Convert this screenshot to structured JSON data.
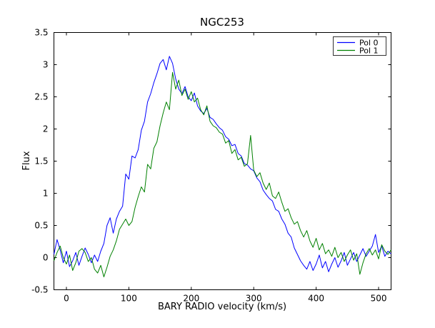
{
  "chart_data": {
    "type": "line",
    "title": "NGC253",
    "xlabel": "BARY RADIO velocity (km/s)",
    "ylabel": "Flux",
    "xlim": [
      -20,
      520
    ],
    "ylim": [
      -0.5,
      3.5
    ],
    "grid": false,
    "legend": {
      "position": "upper right"
    },
    "xticks": {
      "values": [
        0,
        100,
        200,
        300,
        400,
        500
      ],
      "labels": [
        "0",
        "100",
        "200",
        "300",
        "400",
        "500"
      ]
    },
    "yticks": {
      "values": [
        -0.5,
        0,
        0.5,
        1,
        1.5,
        2,
        2.5,
        3,
        3.5
      ],
      "labels": [
        "-0.5",
        "0",
        "0.5",
        "1",
        "1.5",
        "2",
        "2.5",
        "3",
        "3.5"
      ]
    },
    "x": [
      -20,
      -15,
      -10,
      -5,
      0,
      5,
      10,
      15,
      20,
      25,
      30,
      35,
      40,
      45,
      50,
      55,
      60,
      65,
      70,
      75,
      80,
      85,
      90,
      95,
      100,
      105,
      110,
      115,
      120,
      125,
      130,
      135,
      140,
      145,
      150,
      155,
      160,
      165,
      170,
      175,
      180,
      185,
      190,
      195,
      200,
      205,
      210,
      215,
      220,
      225,
      230,
      235,
      240,
      245,
      250,
      255,
      260,
      265,
      270,
      275,
      280,
      285,
      290,
      295,
      300,
      305,
      310,
      315,
      320,
      325,
      330,
      335,
      340,
      345,
      350,
      355,
      360,
      365,
      370,
      375,
      380,
      385,
      390,
      395,
      400,
      405,
      410,
      415,
      420,
      425,
      430,
      435,
      440,
      445,
      450,
      455,
      460,
      465,
      470,
      475,
      480,
      485,
      490,
      495,
      500,
      505,
      510,
      515,
      520
    ],
    "series": [
      {
        "name": "Pol 0",
        "color": "#0000ff",
        "values": [
          0.05,
          0.28,
          0.12,
          -0.08,
          0.1,
          -0.14,
          -0.05,
          0.08,
          -0.12,
          0.02,
          0.15,
          0.05,
          -0.08,
          0.04,
          -0.06,
          0.1,
          0.22,
          0.5,
          0.62,
          0.38,
          0.6,
          0.72,
          0.8,
          1.3,
          1.22,
          1.58,
          1.55,
          1.68,
          1.98,
          2.12,
          2.42,
          2.55,
          2.72,
          2.86,
          3.02,
          3.08,
          2.92,
          3.13,
          3.02,
          2.78,
          2.62,
          2.55,
          2.66,
          2.5,
          2.44,
          2.56,
          2.36,
          2.28,
          2.24,
          2.32,
          2.18,
          2.15,
          2.08,
          2.02,
          1.98,
          1.88,
          1.84,
          1.74,
          1.76,
          1.62,
          1.58,
          1.46,
          1.44,
          1.38,
          1.35,
          1.24,
          1.18,
          1.05,
          0.98,
          0.92,
          0.88,
          0.75,
          0.72,
          0.6,
          0.52,
          0.38,
          0.32,
          0.15,
          0.05,
          -0.05,
          -0.12,
          -0.18,
          -0.06,
          -0.2,
          -0.1,
          0.04,
          -0.16,
          -0.06,
          -0.22,
          -0.1,
          0.0,
          -0.15,
          -0.05,
          0.08,
          -0.12,
          -0.02,
          0.08,
          -0.06,
          0.04,
          0.14,
          0.02,
          0.1,
          0.18,
          0.36,
          0.08,
          0.18,
          0.02,
          0.1,
          0.06
        ]
      },
      {
        "name": "Pol 1",
        "color": "#008000",
        "values": [
          -0.05,
          0.08,
          0.18,
          0.0,
          -0.1,
          0.04,
          -0.2,
          -0.08,
          0.1,
          0.14,
          0.08,
          -0.06,
          0.0,
          -0.18,
          -0.24,
          -0.12,
          -0.3,
          -0.15,
          0.02,
          0.12,
          0.26,
          0.44,
          0.52,
          0.6,
          0.5,
          0.56,
          0.78,
          0.95,
          1.1,
          1.02,
          1.45,
          1.38,
          1.7,
          1.8,
          2.05,
          2.25,
          2.42,
          2.3,
          2.88,
          2.62,
          2.76,
          2.52,
          2.62,
          2.46,
          2.58,
          2.42,
          2.48,
          2.3,
          2.22,
          2.36,
          2.12,
          2.05,
          2.02,
          1.95,
          1.92,
          1.78,
          1.82,
          1.62,
          1.68,
          1.52,
          1.56,
          1.42,
          1.46,
          1.9,
          1.36,
          1.26,
          1.32,
          1.16,
          1.06,
          1.16,
          0.96,
          0.92,
          1.02,
          0.86,
          0.72,
          0.76,
          0.62,
          0.52,
          0.56,
          0.42,
          0.32,
          0.42,
          0.26,
          0.16,
          0.3,
          0.12,
          0.22,
          0.06,
          0.12,
          0.02,
          0.16,
          0.0,
          0.08,
          -0.06,
          0.04,
          0.12,
          -0.04,
          0.06,
          -0.26,
          -0.08,
          0.06,
          0.14,
          0.04,
          0.12,
          -0.02,
          0.2,
          0.1,
          0.05,
          0.12
        ]
      }
    ]
  }
}
